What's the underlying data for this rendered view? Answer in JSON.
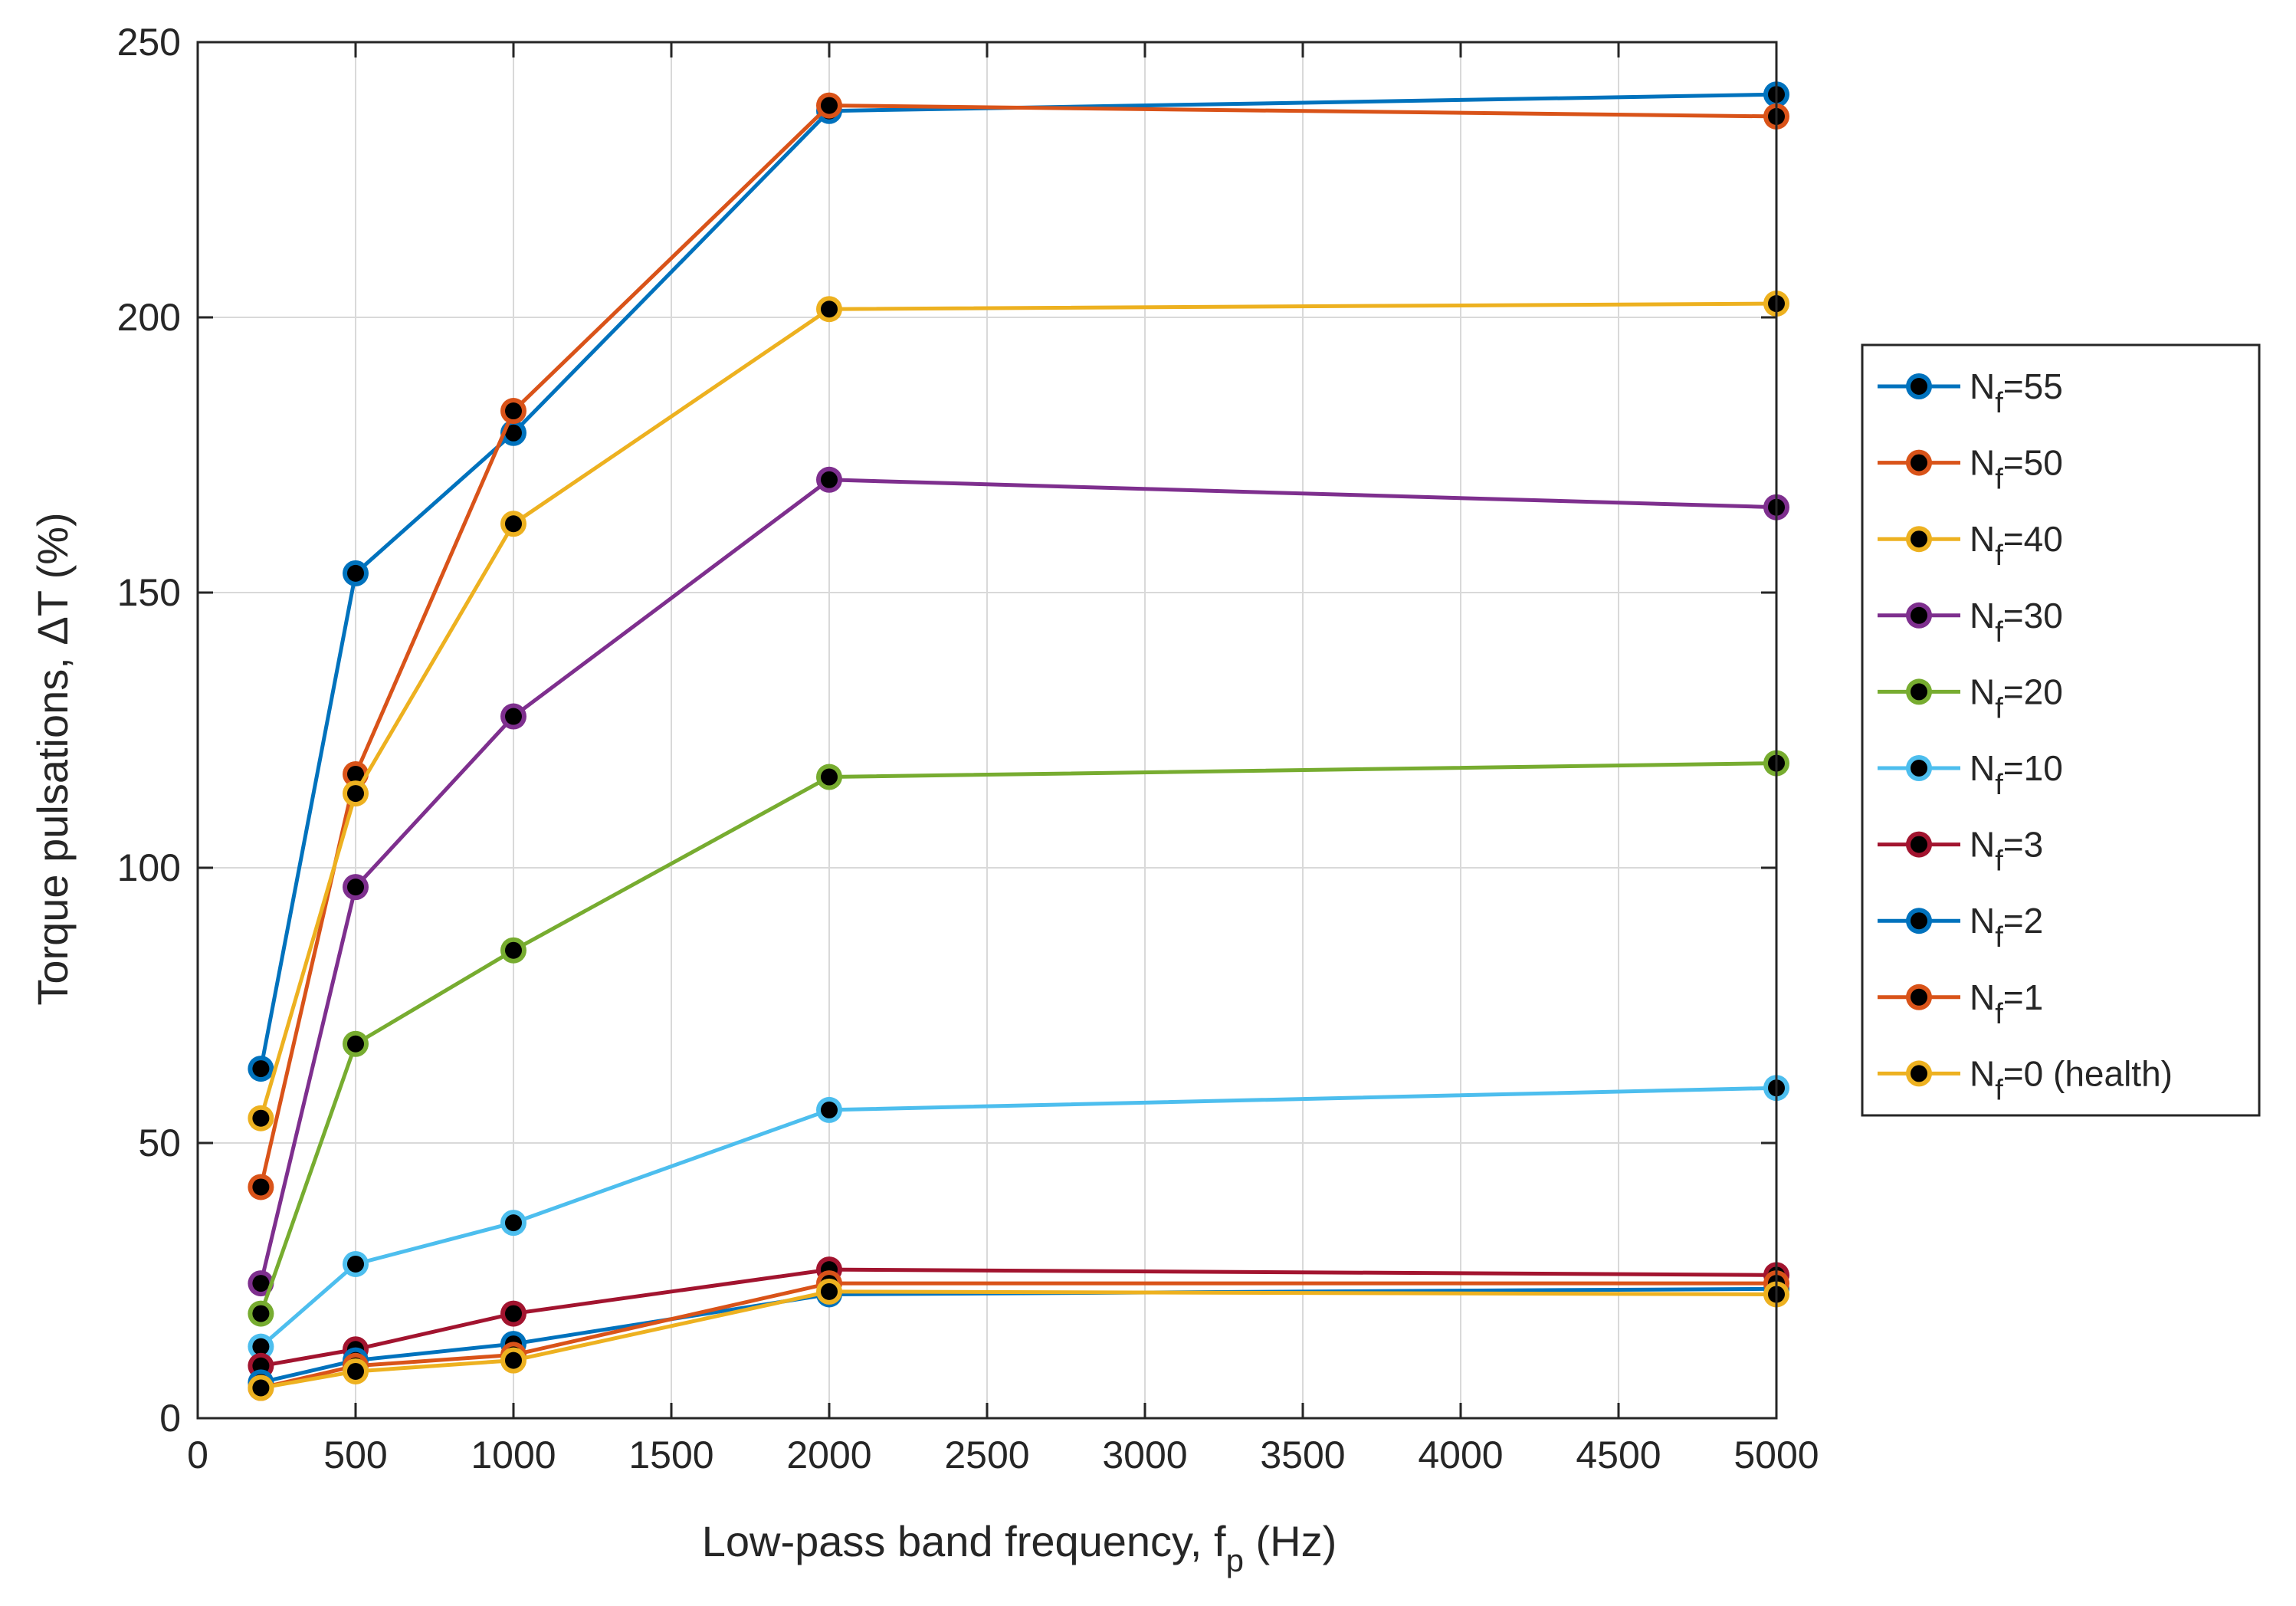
{
  "chart_data": {
    "type": "line",
    "title": "",
    "xlabel": {
      "main": "Low-pass band frequency, f",
      "sub": "p",
      "unit": " (Hz)"
    },
    "ylabel": "Torque pulsations,  ΔT (%)",
    "xlim": [
      0,
      5000
    ],
    "ylim": [
      0,
      250
    ],
    "xticks": [
      0,
      500,
      1000,
      1500,
      2000,
      2500,
      3000,
      3500,
      4000,
      4500,
      5000
    ],
    "yticks": [
      0,
      50,
      100,
      150,
      200,
      250
    ],
    "grid": true,
    "legend_position": "outside-right",
    "x": [
      200,
      500,
      1000,
      2000,
      5000
    ],
    "marker_fill": "#000000",
    "series": [
      {
        "name": "N",
        "sub": "f",
        "suffix": "=55",
        "color": "#0072BD",
        "values": [
          63.5,
          153.5,
          179,
          237.5,
          240.5
        ]
      },
      {
        "name": "N",
        "sub": "f",
        "suffix": "=50",
        "color": "#D95319",
        "values": [
          42,
          117,
          183,
          238.5,
          236.5
        ]
      },
      {
        "name": "N",
        "sub": "f",
        "suffix": "=40",
        "color": "#EDB120",
        "values": [
          54.5,
          113.5,
          162.5,
          201.5,
          202.5
        ]
      },
      {
        "name": "N",
        "sub": "f",
        "suffix": "=30",
        "color": "#7E2F8E",
        "values": [
          24.5,
          96.5,
          127.5,
          170.5,
          165.5
        ]
      },
      {
        "name": "N",
        "sub": "f",
        "suffix": "=20",
        "color": "#77AC30",
        "values": [
          19,
          68,
          85,
          116.5,
          119
        ]
      },
      {
        "name": "N",
        "sub": "f",
        "suffix": "=10",
        "color": "#4DBEEE",
        "values": [
          13,
          28,
          35.5,
          56,
          60
        ]
      },
      {
        "name": "N",
        "sub": "f",
        "suffix": "=3",
        "color": "#A2142F",
        "values": [
          9.5,
          12.5,
          19,
          27,
          26
        ]
      },
      {
        "name": "N",
        "sub": "f",
        "suffix": "=2",
        "color": "#0072BD",
        "values": [
          6.5,
          10.5,
          13.5,
          22.5,
          23.5
        ]
      },
      {
        "name": "N",
        "sub": "f",
        "suffix": "=1",
        "color": "#D95319",
        "values": [
          5.5,
          9.5,
          11.5,
          24.5,
          24.5
        ]
      },
      {
        "name": "N",
        "sub": "f",
        "suffix": "=0 (health)",
        "color": "#EDB120",
        "values": [
          5.5,
          8.5,
          10.5,
          23,
          22.5
        ]
      }
    ]
  }
}
